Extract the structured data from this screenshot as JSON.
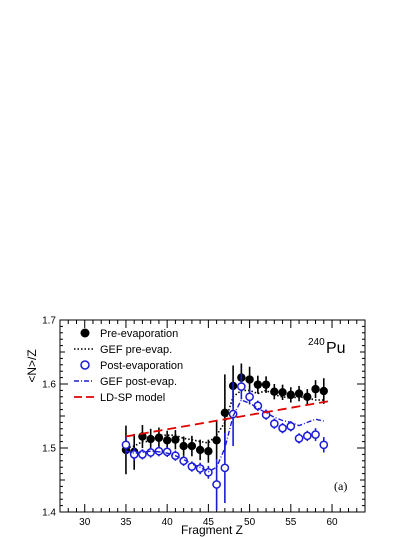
{
  "chart_data": {
    "type": "scatter",
    "xlabel": "Fragment Z",
    "ylabel": "<N>/Z",
    "xlim": [
      27,
      64
    ],
    "ylim": [
      1.4,
      1.7
    ],
    "x_ticks": [
      30,
      35,
      40,
      45,
      50,
      55,
      60
    ],
    "y_ticks": [
      1.4,
      1.5,
      1.6,
      1.7
    ],
    "grid": false,
    "legend_position": "top-left",
    "annotations": {
      "isotope_mass": "240",
      "isotope_symbol": "Pu",
      "panel_label": "(a)"
    },
    "series": [
      {
        "name": "Pre-evaporation",
        "style": "filled-circle",
        "color": "#000000",
        "x": [
          35,
          36,
          37,
          38,
          39,
          40,
          41,
          42,
          43,
          44,
          45,
          46,
          47,
          48,
          49,
          50,
          51,
          52,
          53,
          54,
          55,
          56,
          57,
          58,
          59
        ],
        "y": [
          1.497,
          1.494,
          1.518,
          1.514,
          1.516,
          1.512,
          1.513,
          1.503,
          1.503,
          1.497,
          1.495,
          1.512,
          1.555,
          1.597,
          1.61,
          1.607,
          1.599,
          1.599,
          1.588,
          1.587,
          1.583,
          1.585,
          1.58,
          1.592,
          1.589
        ],
        "err": [
          0.038,
          0.028,
          0.018,
          0.016,
          0.016,
          0.015,
          0.015,
          0.015,
          0.016,
          0.016,
          0.018,
          0.03,
          0.06,
          0.032,
          0.022,
          0.02,
          0.014,
          0.013,
          0.012,
          0.012,
          0.012,
          0.012,
          0.012,
          0.014,
          0.02
        ]
      },
      {
        "name": "GEF pre-evap.",
        "style": "dotted-line",
        "color": "#000000",
        "x": [
          35,
          36,
          37,
          38,
          39,
          40,
          41,
          42,
          43,
          44,
          45,
          46,
          47,
          48,
          49,
          50,
          51,
          52,
          53,
          54,
          55,
          56,
          57,
          58,
          59
        ],
        "y": [
          1.5,
          1.503,
          1.51,
          1.51,
          1.52,
          1.52,
          1.52,
          1.515,
          1.513,
          1.51,
          1.508,
          1.52,
          1.54,
          1.58,
          1.59,
          1.59,
          1.585,
          1.59,
          1.583,
          1.58,
          1.578,
          1.58,
          1.578,
          1.575,
          1.575
        ]
      },
      {
        "name": "Post-evaporation",
        "style": "open-circle",
        "color": "#1b1bd6",
        "x": [
          35,
          36,
          37,
          38,
          39,
          40,
          41,
          42,
          43,
          44,
          45,
          46,
          47,
          48,
          49,
          50,
          51,
          52,
          53,
          54,
          55,
          56,
          57,
          58,
          59
        ],
        "y": [
          1.505,
          1.49,
          1.49,
          1.493,
          1.495,
          1.494,
          1.488,
          1.48,
          1.471,
          1.468,
          1.462,
          1.443,
          1.469,
          1.553,
          1.596,
          1.58,
          1.566,
          1.552,
          1.538,
          1.531,
          1.534,
          1.515,
          1.519,
          1.521,
          1.505
        ],
        "err": [
          0.015,
          0.01,
          0.008,
          0.008,
          0.008,
          0.008,
          0.008,
          0.008,
          0.008,
          0.009,
          0.01,
          0.04,
          0.055,
          0.05,
          0.02,
          0.012,
          0.008,
          0.008,
          0.008,
          0.008,
          0.008,
          0.008,
          0.008,
          0.01,
          0.012
        ]
      },
      {
        "name": "GEF post-evap.",
        "style": "dash-dot-line",
        "color": "#1b1bd6",
        "x": [
          35,
          36,
          37,
          38,
          39,
          40,
          41,
          42,
          43,
          44,
          45,
          46,
          47,
          48,
          49,
          50,
          51,
          52,
          53,
          54,
          55,
          56,
          57,
          58,
          59
        ],
        "y": [
          1.495,
          1.492,
          1.493,
          1.495,
          1.494,
          1.492,
          1.488,
          1.482,
          1.475,
          1.47,
          1.463,
          1.47,
          1.5,
          1.55,
          1.575,
          1.57,
          1.562,
          1.555,
          1.548,
          1.543,
          1.54,
          1.535,
          1.54,
          1.545,
          1.542
        ]
      },
      {
        "name": "LD-SP model",
        "style": "dashed-line",
        "color": "#e00000",
        "x": [
          35,
          60
        ],
        "y": [
          1.518,
          1.574
        ]
      }
    ]
  }
}
